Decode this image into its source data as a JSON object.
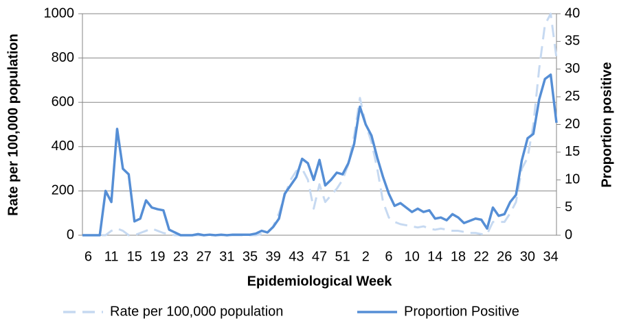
{
  "chart_data": {
    "type": "line",
    "x_label": "Epidemiological Week",
    "y_label": "Rate per 100,000 population",
    "y2_label": "Proportion positive",
    "categories": [
      null,
      "6",
      null,
      null,
      null,
      "11",
      null,
      null,
      null,
      "15",
      null,
      null,
      null,
      "19",
      null,
      null,
      null,
      "23",
      null,
      null,
      null,
      "27",
      null,
      null,
      null,
      "31",
      null,
      null,
      null,
      "35",
      null,
      null,
      null,
      "39",
      null,
      null,
      null,
      "43",
      null,
      null,
      null,
      "47",
      null,
      null,
      null,
      "51",
      null,
      null,
      null,
      "2",
      null,
      null,
      null,
      "6",
      null,
      null,
      null,
      "10",
      null,
      null,
      null,
      "14",
      null,
      null,
      null,
      "18",
      null,
      null,
      null,
      "22",
      null,
      null,
      null,
      "26",
      null,
      null,
      null,
      "30",
      null,
      null,
      null,
      "34",
      null
    ],
    "series": [
      {
        "name": "Rate per 100,000 population",
        "color": "#c6d9f1",
        "style": "dashed",
        "values": [
          0,
          0,
          0,
          0,
          0,
          20,
          30,
          20,
          0,
          0,
          10,
          20,
          30,
          20,
          10,
          5,
          0,
          0,
          0,
          0,
          0,
          0,
          0,
          0,
          0,
          0,
          0,
          0,
          0,
          0,
          0,
          5,
          10,
          40,
          100,
          180,
          250,
          290,
          300,
          250,
          120,
          230,
          150,
          180,
          210,
          250,
          320,
          450,
          620,
          500,
          420,
          300,
          150,
          80,
          60,
          50,
          45,
          40,
          35,
          40,
          30,
          25,
          30,
          25,
          20,
          20,
          15,
          10,
          10,
          5,
          5,
          60,
          60,
          60,
          100,
          150,
          300,
          350,
          500,
          750,
          950,
          1000,
          800
        ]
      },
      {
        "name": "Proportion Positive",
        "color": "#558ed5",
        "style": "solid",
        "axis": "y2",
        "values": [
          0,
          0,
          0,
          0,
          8,
          6,
          19.2,
          12,
          11,
          2.5,
          3,
          6.3,
          5,
          4.7,
          4.5,
          1,
          0.5,
          0,
          0,
          0,
          0.2,
          0,
          0.1,
          0,
          0.1,
          0,
          0.1,
          0.1,
          0.1,
          0.1,
          0.3,
          0.8,
          0.5,
          1.5,
          3,
          7.5,
          9,
          10.5,
          13.8,
          13,
          10,
          13.6,
          9,
          10,
          11.3,
          11,
          13,
          16.5,
          23.2,
          20,
          18,
          14,
          10.5,
          7.5,
          5.3,
          5.8,
          5,
          4.2,
          4.8,
          4.2,
          4.5,
          3,
          3.2,
          2.7,
          3.8,
          3.2,
          2.2,
          2.6,
          3,
          2.8,
          1.2,
          5,
          3.5,
          3.8,
          6,
          7.3,
          13.5,
          17.5,
          18.3,
          24.5,
          28.2,
          29,
          20.3
        ]
      }
    ],
    "ylim": [
      0,
      1000
    ],
    "yticks": [
      0,
      200,
      400,
      600,
      800,
      1000
    ],
    "y2lim": [
      0,
      40
    ],
    "y2ticks": [
      0,
      5,
      10,
      15,
      20,
      25,
      30,
      35,
      40
    ],
    "grid": true,
    "legend": "bottom"
  }
}
